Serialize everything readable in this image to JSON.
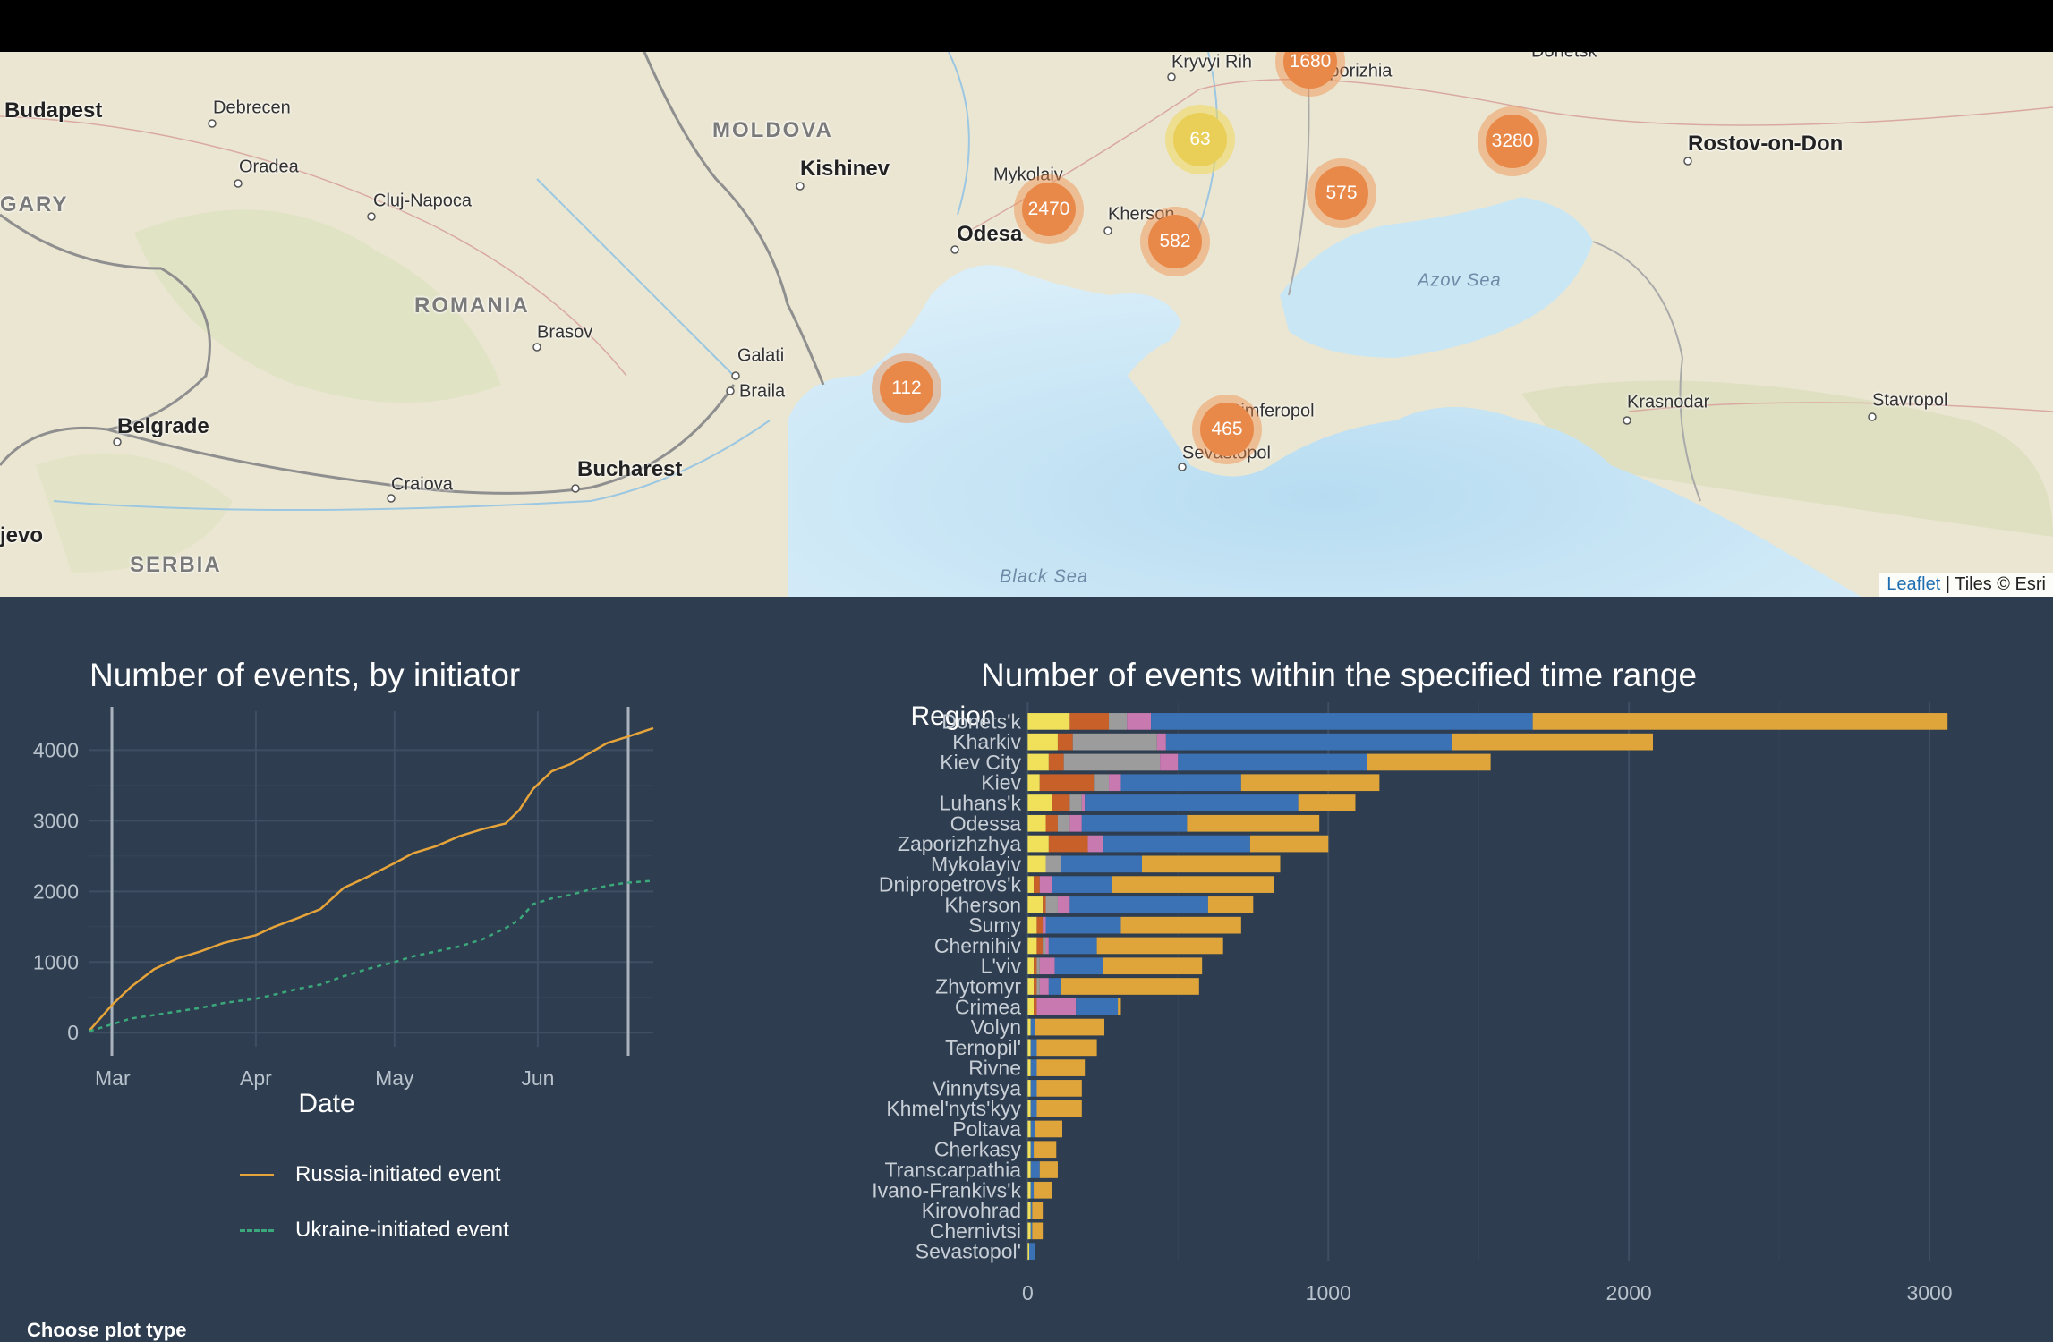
{
  "map": {
    "places": [
      {
        "name": "Budapest",
        "x": 5,
        "y": 124,
        "cls": "big"
      },
      {
        "name": "Debrecen",
        "x": 238,
        "y": 121,
        "cls": ""
      },
      {
        "name": "Oradea",
        "x": 267,
        "y": 187,
        "cls": ""
      },
      {
        "name": "Cluj-Napoca",
        "x": 417,
        "y": 225,
        "cls": ""
      },
      {
        "name": "GARY",
        "x": 0,
        "y": 229,
        "cls": "country"
      },
      {
        "name": "MOLDOVA",
        "x": 796,
        "y": 146,
        "cls": "country"
      },
      {
        "name": "Kishinev",
        "x": 894,
        "y": 189,
        "cls": "big"
      },
      {
        "name": "ROMANIA",
        "x": 463,
        "y": 342,
        "cls": "country"
      },
      {
        "name": "Brasov",
        "x": 600,
        "y": 372,
        "cls": ""
      },
      {
        "name": "Galati",
        "x": 824,
        "y": 398,
        "cls": ""
      },
      {
        "name": "Braila",
        "x": 826,
        "y": 438,
        "cls": ""
      },
      {
        "name": "Belgrade",
        "x": 131,
        "y": 477,
        "cls": "big"
      },
      {
        "name": "Bucharest",
        "x": 645,
        "y": 525,
        "cls": "big"
      },
      {
        "name": "Craiova",
        "x": 437,
        "y": 542,
        "cls": ""
      },
      {
        "name": "jevo",
        "x": 0,
        "y": 599,
        "cls": "big"
      },
      {
        "name": "SERBIA",
        "x": 145,
        "y": 632,
        "cls": "country"
      },
      {
        "name": "Odesa",
        "x": 1069,
        "y": 262,
        "cls": "big"
      },
      {
        "name": "Mykolaiv",
        "x": 1110,
        "y": 196,
        "cls": ""
      },
      {
        "name": "Kherson",
        "x": 1238,
        "y": 240,
        "cls": ""
      },
      {
        "name": "Kryvyi Rih",
        "x": 1309,
        "y": 70,
        "cls": ""
      },
      {
        "name": "Zaporizhia",
        "x": 1462,
        "y": 80,
        "cls": ""
      },
      {
        "name": "Donetsk",
        "x": 1711,
        "y": 58,
        "cls": ""
      },
      {
        "name": "Rostov-on-Don",
        "x": 1886,
        "y": 161,
        "cls": "big"
      },
      {
        "name": "Azov Sea",
        "x": 1584,
        "y": 314,
        "cls": "sea"
      },
      {
        "name": "Simferopol",
        "x": 1373,
        "y": 460,
        "cls": ""
      },
      {
        "name": "Sevastopol",
        "x": 1321,
        "y": 507,
        "cls": ""
      },
      {
        "name": "Krasnodar",
        "x": 1818,
        "y": 450,
        "cls": ""
      },
      {
        "name": "Stavropol",
        "x": 2092,
        "y": 448,
        "cls": ""
      },
      {
        "name": "Black Sea",
        "x": 1117,
        "y": 645,
        "cls": "sea"
      }
    ],
    "clusters": [
      {
        "count": "1680",
        "x": 1464,
        "y": 69,
        "tone": "orange"
      },
      {
        "count": "63",
        "x": 1341,
        "y": 156,
        "tone": "yellow"
      },
      {
        "count": "3280",
        "x": 1690,
        "y": 158,
        "tone": "orange"
      },
      {
        "count": "575",
        "x": 1499,
        "y": 216,
        "tone": "orange"
      },
      {
        "count": "2470",
        "x": 1172,
        "y": 234,
        "tone": "orange"
      },
      {
        "count": "582",
        "x": 1313,
        "y": 270,
        "tone": "orange"
      },
      {
        "count": "112",
        "x": 1013,
        "y": 434,
        "tone": "orange"
      },
      {
        "count": "465",
        "x": 1371,
        "y": 480,
        "tone": "orange"
      }
    ],
    "attribution": {
      "link": "Leaflet",
      "rest": " | Tiles © Esri"
    }
  },
  "line_plot": {
    "title": "Number of events, by initiator",
    "xlabel": "Date",
    "yticks": [
      0,
      1000,
      2000,
      3000,
      4000
    ],
    "xticks": [
      "Mar",
      "Apr",
      "May",
      "Jun"
    ],
    "legend": [
      "Russia-initiated event",
      "Ukraine-initiated event"
    ],
    "colors": {
      "russia": "#e6a43a",
      "ukraine": "#3aa87a"
    }
  },
  "bar_plot": {
    "title": "Number of events within the specified time range",
    "ylabel": "Region",
    "xticks": [
      0,
      1000,
      2000,
      3000
    ],
    "colors": [
      "#f0e05a",
      "#c8602a",
      "#9c9c9c",
      "#c779b0",
      "#3a72b5",
      "#e0a53a"
    ]
  },
  "chart_data": [
    {
      "type": "line",
      "title": "Number of events, by initiator",
      "xlabel": "Date",
      "ylabel": "",
      "x_ticks": [
        "Mar",
        "Apr",
        "May",
        "Jun"
      ],
      "x_domain": [
        "2022-02-24",
        "2022-06-26"
      ],
      "ylim": [
        -200,
        4550
      ],
      "series": [
        {
          "name": "Russia-initiated event",
          "x": [
            "2022-02-24",
            "2022-03-01",
            "2022-03-05",
            "2022-03-10",
            "2022-03-15",
            "2022-03-20",
            "2022-03-25",
            "2022-04-01",
            "2022-04-05",
            "2022-04-10",
            "2022-04-15",
            "2022-04-20",
            "2022-04-25",
            "2022-05-01",
            "2022-05-05",
            "2022-05-10",
            "2022-05-15",
            "2022-05-20",
            "2022-05-25",
            "2022-05-28",
            "2022-05-31",
            "2022-06-04",
            "2022-06-08",
            "2022-06-12",
            "2022-06-16",
            "2022-06-20",
            "2022-06-26"
          ],
          "y": [
            30,
            400,
            650,
            900,
            1050,
            1150,
            1270,
            1380,
            1500,
            1620,
            1750,
            2050,
            2200,
            2400,
            2540,
            2640,
            2780,
            2880,
            2960,
            3150,
            3450,
            3700,
            3800,
            3950,
            4100,
            4180,
            4310
          ]
        },
        {
          "name": "Ukraine-initiated event",
          "x": [
            "2022-02-24",
            "2022-03-01",
            "2022-03-05",
            "2022-03-10",
            "2022-03-15",
            "2022-03-20",
            "2022-03-25",
            "2022-04-01",
            "2022-04-05",
            "2022-04-10",
            "2022-04-15",
            "2022-04-20",
            "2022-04-25",
            "2022-05-01",
            "2022-05-05",
            "2022-05-10",
            "2022-05-15",
            "2022-05-20",
            "2022-05-25",
            "2022-05-28",
            "2022-05-31",
            "2022-06-04",
            "2022-06-08",
            "2022-06-12",
            "2022-06-16",
            "2022-06-20",
            "2022-06-26"
          ],
          "y": [
            20,
            120,
            200,
            250,
            300,
            350,
            420,
            480,
            540,
            620,
            680,
            800,
            900,
            1000,
            1080,
            1150,
            1220,
            1320,
            1480,
            1600,
            1820,
            1900,
            1950,
            2020,
            2080,
            2120,
            2150
          ]
        }
      ]
    },
    {
      "type": "bar",
      "stacked": true,
      "orientation": "horizontal",
      "title": "Number of events within the specified time range",
      "ylabel": "Region",
      "xlabel": "",
      "xlim": [
        -10,
        3250
      ],
      "categories": [
        "Donets'k",
        "Kharkiv",
        "Kiev City",
        "Kiev",
        "Luhans'k",
        "Odessa",
        "Zaporizhzhya",
        "Mykolayiv",
        "Dnipropetrovs'k",
        "Kherson",
        "Sumy",
        "Chernihiv",
        "L'viv",
        "Zhytomyr",
        "Crimea",
        "Volyn",
        "Ternopil'",
        "Rivne",
        "Vinnytsya",
        "Khmel'nyts'kyy",
        "Poltava",
        "Cherkasy",
        "Transcarpathia",
        "Ivano-Frankivs'k",
        "Kirovohrad",
        "Chernivtsi",
        "Sevastopol'"
      ],
      "series": [
        {
          "color": "#f0e05a",
          "values": [
            140,
            100,
            70,
            40,
            80,
            60,
            70,
            60,
            20,
            50,
            30,
            30,
            20,
            20,
            20,
            10,
            10,
            10,
            10,
            10,
            10,
            10,
            10,
            10,
            10,
            10,
            5
          ]
        },
        {
          "color": "#c8602a",
          "values": [
            130,
            50,
            50,
            180,
            60,
            40,
            130,
            0,
            20,
            10,
            20,
            20,
            10,
            10,
            10,
            0,
            0,
            0,
            0,
            0,
            0,
            0,
            0,
            0,
            0,
            0,
            0
          ]
        },
        {
          "color": "#9c9c9c",
          "values": [
            60,
            280,
            320,
            50,
            40,
            40,
            0,
            50,
            0,
            40,
            0,
            10,
            10,
            10,
            0,
            0,
            0,
            0,
            0,
            0,
            0,
            0,
            0,
            0,
            0,
            0,
            0
          ]
        },
        {
          "color": "#c779b0",
          "values": [
            80,
            30,
            60,
            40,
            10,
            40,
            50,
            0,
            40,
            40,
            10,
            10,
            50,
            30,
            130,
            0,
            0,
            0,
            0,
            0,
            0,
            0,
            0,
            0,
            0,
            0,
            0
          ]
        },
        {
          "color": "#3a72b5",
          "values": [
            1270,
            950,
            630,
            400,
            710,
            350,
            490,
            270,
            200,
            460,
            250,
            160,
            160,
            40,
            140,
            15,
            20,
            20,
            20,
            20,
            15,
            10,
            30,
            10,
            5,
            5,
            20
          ]
        },
        {
          "color": "#e0a53a",
          "values": [
            1380,
            670,
            410,
            460,
            190,
            440,
            260,
            460,
            540,
            150,
            400,
            420,
            330,
            460,
            10,
            230,
            200,
            160,
            150,
            150,
            90,
            75,
            60,
            60,
            35,
            35,
            0
          ]
        }
      ]
    }
  ],
  "footer": {
    "choose_label": "Choose plot type"
  }
}
